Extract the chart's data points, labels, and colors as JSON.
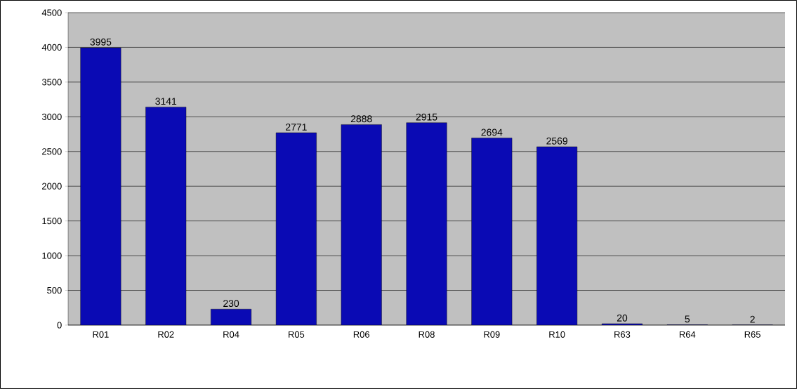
{
  "chart_data": {
    "type": "bar",
    "categories": [
      "R01",
      "R02",
      "R04",
      "R05",
      "R06",
      "R08",
      "R09",
      "R10",
      "R63",
      "R64",
      "R65"
    ],
    "values": [
      3995,
      3141,
      230,
      2771,
      2888,
      2915,
      2694,
      2569,
      20,
      5,
      2
    ],
    "color": "#0a0ab4",
    "ylim": [
      0,
      4500
    ],
    "yticks": [
      0,
      500,
      1000,
      1500,
      2000,
      2500,
      3000,
      3500,
      4000,
      4500
    ],
    "grid": "y",
    "data_labels": true
  }
}
